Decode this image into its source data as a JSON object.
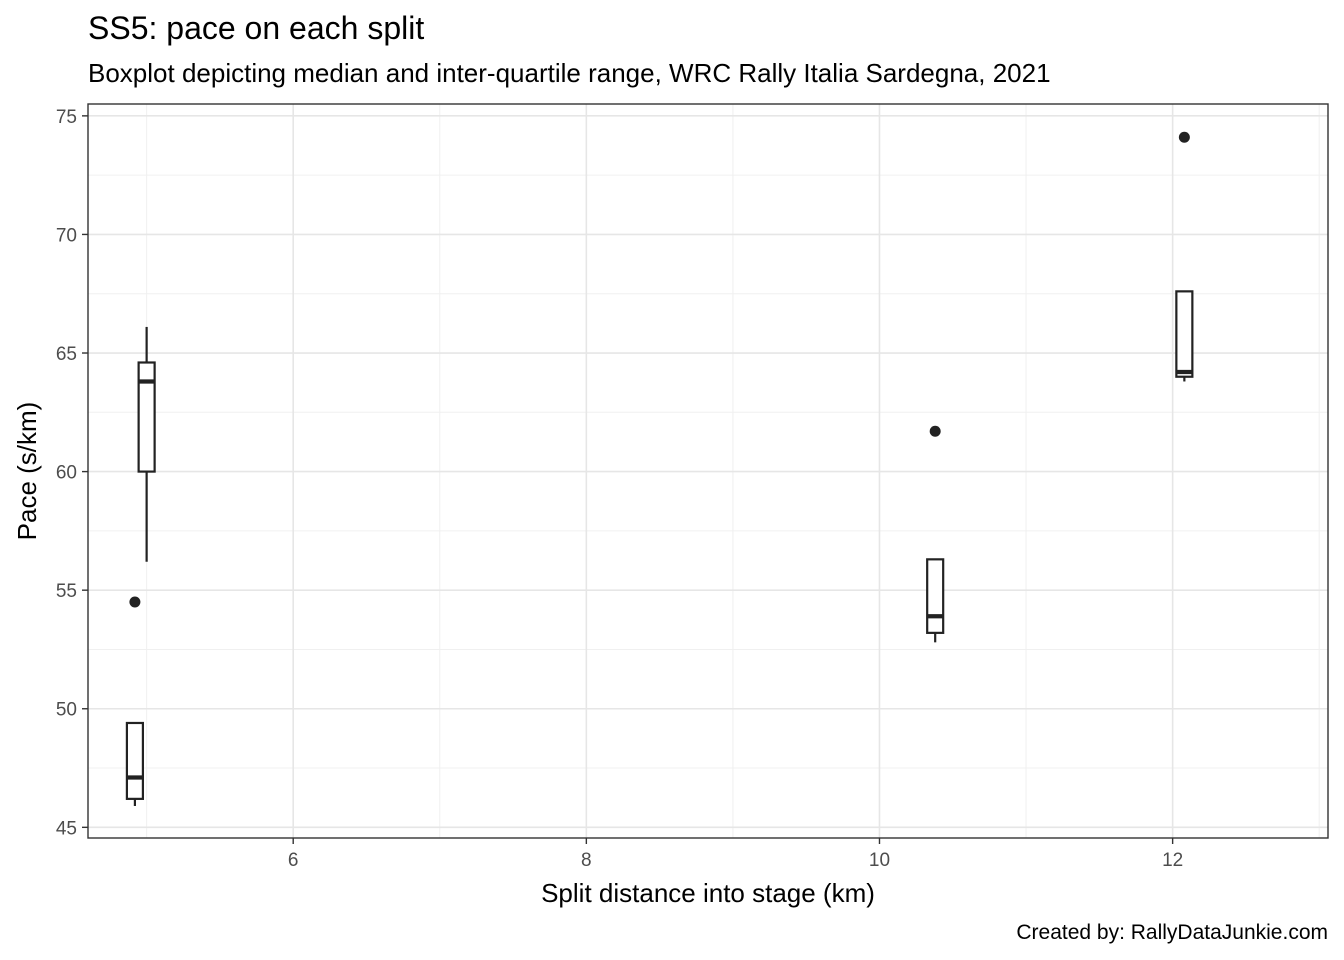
{
  "chart_data": {
    "type": "boxplot",
    "title": "SS5: pace on each split",
    "subtitle": "Boxplot depicting median and inter-quartile range, WRC Rally Italia Sardegna, 2021",
    "xlabel": "Split distance into stage (km)",
    "ylabel": "Pace (s/km)",
    "caption": "Created by: RallyDataJunkie.com",
    "xlim": [
      4.6,
      13.06
    ],
    "ylim": [
      44.55,
      75.5
    ],
    "x_ticks": [
      6,
      8,
      10,
      12
    ],
    "y_ticks": [
      45,
      50,
      55,
      60,
      65,
      70,
      75
    ],
    "grid": true,
    "boxes": [
      {
        "x": 4.92,
        "whisker_low": 45.9,
        "q1": 46.2,
        "median": 47.1,
        "q3": 49.4,
        "whisker_high": 49.4,
        "outliers": [
          54.5
        ]
      },
      {
        "x": 5.0,
        "whisker_low": 56.2,
        "q1": 60.0,
        "median": 63.8,
        "q3": 64.6,
        "whisker_high": 66.1,
        "outliers": []
      },
      {
        "x": 10.38,
        "whisker_low": 52.8,
        "q1": 53.2,
        "median": 53.9,
        "q3": 56.3,
        "whisker_high": 56.3,
        "outliers": [
          61.7
        ]
      },
      {
        "x": 12.08,
        "whisker_low": 63.8,
        "q1": 64.0,
        "median": 64.2,
        "q3": 67.6,
        "whisker_high": 67.6,
        "outliers": [
          74.1
        ]
      }
    ]
  }
}
